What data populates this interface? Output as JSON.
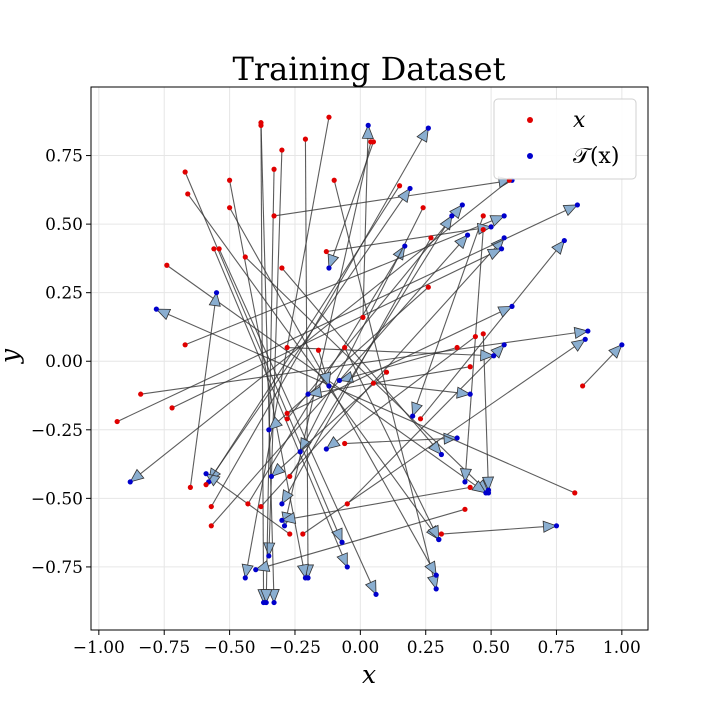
{
  "colors": {
    "source_point": "#e00000",
    "mapped_point": "#0000cc",
    "arrow_line": "#333333",
    "arrow_head": "#8aaed0",
    "grid": "#e6e6e6"
  },
  "chart_data": {
    "type": "scatter",
    "title": "Training Dataset",
    "xlabel": "x",
    "ylabel": "y",
    "xlim": [
      -1.03,
      1.1
    ],
    "ylim": [
      -0.98,
      1.0
    ],
    "xticks": [
      -1.0,
      -0.75,
      -0.5,
      -0.25,
      0.0,
      0.25,
      0.5,
      0.75,
      1.0
    ],
    "xtick_labels": [
      "−1.00",
      "−0.75",
      "−0.50",
      "−0.25",
      "0.00",
      "0.25",
      "0.50",
      "0.75",
      "1.00"
    ],
    "yticks": [
      -0.75,
      -0.5,
      -0.25,
      0.0,
      0.25,
      0.5,
      0.75
    ],
    "ytick_labels": [
      "−0.75",
      "−0.50",
      "−0.25",
      "0.00",
      "0.25",
      "0.50",
      "0.75"
    ],
    "grid": true,
    "legend_position": "top-right",
    "series": [
      {
        "name": "x",
        "color": "#e00000"
      },
      {
        "name": "𝒯(x)",
        "color": "#0000cc"
      }
    ],
    "pairs": [
      {
        "x": [
          -0.38,
          0.87
        ],
        "t": [
          -0.33,
          -0.88
        ]
      },
      {
        "x": [
          -0.38,
          0.86
        ],
        "t": [
          -0.37,
          -0.88
        ]
      },
      {
        "x": [
          -0.3,
          0.77
        ],
        "t": [
          -0.35,
          -0.71
        ]
      },
      {
        "x": [
          -0.21,
          0.81
        ],
        "t": [
          -0.2,
          -0.79
        ]
      },
      {
        "x": [
          -0.12,
          0.89
        ],
        "t": [
          -0.44,
          -0.79
        ]
      },
      {
        "x": [
          -0.33,
          0.7
        ],
        "t": [
          -0.36,
          -0.88
        ]
      },
      {
        "x": [
          -0.1,
          0.66
        ],
        "t": [
          0.29,
          -0.83
        ]
      },
      {
        "x": [
          0.04,
          0.8
        ],
        "t": [
          -0.29,
          -0.6
        ]
      },
      {
        "x": [
          -0.67,
          0.69
        ],
        "t": [
          -0.07,
          -0.66
        ]
      },
      {
        "x": [
          -0.66,
          0.61
        ],
        "t": [
          0.3,
          -0.65
        ]
      },
      {
        "x": [
          -0.5,
          0.66
        ],
        "t": [
          -0.21,
          -0.79
        ]
      },
      {
        "x": [
          0.15,
          0.64
        ],
        "t": [
          -0.58,
          -0.44
        ]
      },
      {
        "x": [
          -0.5,
          0.56
        ],
        "t": [
          0.29,
          -0.78
        ]
      },
      {
        "x": [
          -0.56,
          0.41
        ],
        "t": [
          -0.05,
          -0.75
        ]
      },
      {
        "x": [
          -0.54,
          0.41
        ],
        "t": [
          0.06,
          -0.85
        ]
      },
      {
        "x": [
          -0.44,
          0.38
        ],
        "t": [
          0.49,
          -0.48
        ]
      },
      {
        "x": [
          -0.3,
          0.34
        ],
        "t": [
          0.31,
          -0.34
        ]
      },
      {
        "x": [
          -0.28,
          -0.21
        ],
        "t": [
          0.39,
          0.57
        ]
      },
      {
        "x": [
          -0.22,
          -0.63
        ],
        "t": [
          0.86,
          0.08
        ]
      },
      {
        "x": [
          -0.43,
          -0.52
        ],
        "t": [
          0.17,
          0.42
        ]
      },
      {
        "x": [
          -0.05,
          -0.52
        ],
        "t": [
          0.55,
          0.06
        ]
      },
      {
        "x": [
          -0.57,
          -0.53
        ],
        "t": [
          0.26,
          0.85
        ]
      },
      {
        "x": [
          -0.57,
          -0.6
        ],
        "t": [
          0.41,
          0.46
        ]
      },
      {
        "x": [
          0.24,
          0.56
        ],
        "t": [
          -0.23,
          -0.33
        ]
      },
      {
        "x": [
          0.27,
          0.45
        ],
        "t": [
          -0.3,
          -0.52
        ]
      },
      {
        "x": [
          0.26,
          0.27
        ],
        "t": [
          -0.35,
          -0.25
        ]
      },
      {
        "x": [
          0.37,
          0.05
        ],
        "t": [
          -0.08,
          -0.07
        ]
      },
      {
        "x": [
          -0.74,
          0.35
        ],
        "t": [
          0.48,
          -0.48
        ]
      },
      {
        "x": [
          0.47,
          0.53
        ],
        "t": [
          0.2,
          -0.2
        ]
      },
      {
        "x": [
          0.47,
          0.48
        ],
        "t": [
          0.4,
          -0.44
        ]
      },
      {
        "x": [
          0.47,
          0.1
        ],
        "t": [
          0.49,
          -0.47
        ]
      },
      {
        "x": [
          0.1,
          -0.04
        ],
        "t": [
          -0.34,
          -0.42
        ]
      },
      {
        "x": [
          -0.06,
          0.05
        ],
        "t": [
          0.3,
          -0.65
        ]
      },
      {
        "x": [
          0.05,
          -0.08
        ],
        "t": [
          0.42,
          -0.12
        ]
      },
      {
        "x": [
          0.01,
          0.16
        ],
        "t": [
          0.03,
          0.86
        ]
      },
      {
        "x": [
          -0.38,
          -0.53
        ],
        "t": [
          0.55,
          0.45
        ]
      },
      {
        "x": [
          -0.67,
          0.06
        ],
        "t": [
          0.55,
          0.53
        ]
      },
      {
        "x": [
          -0.33,
          0.53
        ],
        "t": [
          0.58,
          0.66
        ]
      },
      {
        "x": [
          -0.13,
          0.4
        ],
        "t": [
          0.5,
          0.49
        ]
      },
      {
        "x": [
          -0.28,
          0.05
        ],
        "t": [
          0.51,
          0.02
        ]
      },
      {
        "x": [
          0.05,
          0.8
        ],
        "t": [
          -0.12,
          0.34
        ]
      },
      {
        "x": [
          -0.16,
          0.04
        ],
        "t": [
          -0.12,
          -0.09
        ]
      },
      {
        "x": [
          0.42,
          -0.02
        ],
        "t": [
          -0.2,
          -0.12
        ]
      },
      {
        "x": [
          -0.06,
          -0.3
        ],
        "t": [
          0.37,
          -0.28
        ]
      },
      {
        "x": [
          -0.27,
          -0.63
        ],
        "t": [
          -0.59,
          -0.41
        ]
      },
      {
        "x": [
          -0.27,
          -0.42
        ],
        "t": [
          0.35,
          0.53
        ]
      },
      {
        "x": [
          -0.59,
          -0.45
        ],
        "t": [
          0.19,
          0.63
        ]
      },
      {
        "x": [
          0.23,
          -0.21
        ],
        "t": [
          0.78,
          0.44
        ]
      },
      {
        "x": [
          -0.93,
          -0.22
        ],
        "t": [
          0.83,
          0.57
        ]
      },
      {
        "x": [
          -0.72,
          -0.17
        ],
        "t": [
          0.54,
          0.41
        ]
      },
      {
        "x": [
          0.57,
          0.66
        ],
        "t": [
          -0.88,
          -0.44
        ]
      },
      {
        "x": [
          0.82,
          -0.48
        ],
        "t": [
          -0.78,
          0.19
        ]
      },
      {
        "x": [
          0.85,
          -0.09
        ],
        "t": [
          1.0,
          0.06
        ]
      },
      {
        "x": [
          -0.84,
          -0.12
        ],
        "t": [
          0.87,
          0.11
        ]
      },
      {
        "x": [
          -0.28,
          -0.19
        ],
        "t": [
          0.58,
          0.2
        ]
      },
      {
        "x": [
          0.42,
          -0.46
        ],
        "t": [
          -0.3,
          -0.58
        ]
      },
      {
        "x": [
          -0.65,
          -0.46
        ],
        "t": [
          -0.55,
          0.25
        ]
      },
      {
        "x": [
          0.31,
          -0.63
        ],
        "t": [
          0.75,
          -0.6
        ]
      },
      {
        "x": [
          0.4,
          -0.54
        ],
        "t": [
          -0.4,
          -0.76
        ]
      },
      {
        "x": [
          0.44,
          0.09
        ],
        "t": [
          -0.13,
          -0.32
        ]
      }
    ]
  }
}
